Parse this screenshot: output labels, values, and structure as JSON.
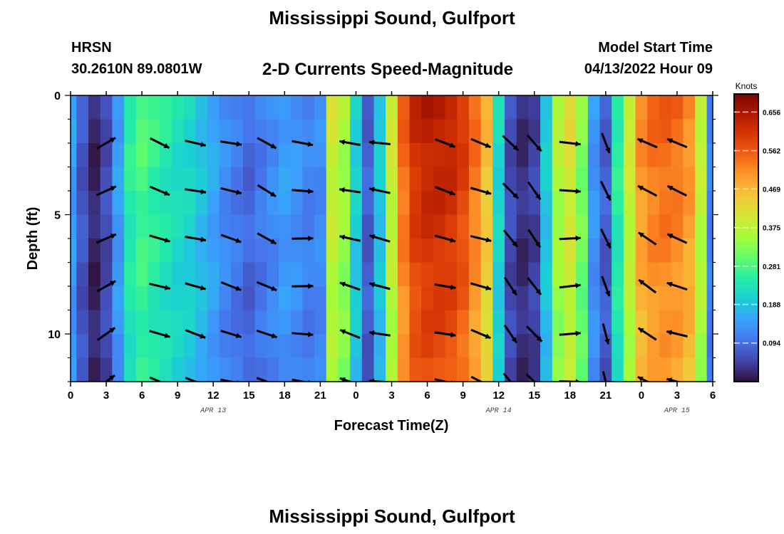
{
  "header": {
    "title": "Mississippi Sound, Gulfport",
    "station": "HRSN",
    "coordinates": "30.2610N  89.0801W",
    "product": "2-D Currents Speed-Magnitude",
    "model_start_label": "Model Start Time",
    "model_start_value": "04/13/2022 Hour 09"
  },
  "footer": {
    "title": "Mississippi Sound, Gulfport"
  },
  "colorbar": {
    "unit": "Knots",
    "ticks": [
      "0.656",
      "0.562",
      "0.469",
      "0.375",
      "0.281",
      "0.188",
      "0.094"
    ],
    "colors": [
      "#30123b",
      "#4145ab",
      "#4675ed",
      "#39a2fc",
      "#1bcfd4",
      "#24eca6",
      "#61fc6c",
      "#a4fc3b",
      "#d1e834",
      "#f3c63a",
      "#fe9b2d",
      "#f36315",
      "#d93806",
      "#b11901",
      "#7a0403"
    ]
  },
  "chart_data": {
    "type": "heatmap",
    "title": "2-D Currents Speed-Magnitude",
    "xlabel": "Forecast Time(Z)",
    "ylabel": "Depth (ft)",
    "units": "Knots",
    "x_range_hours": [
      0,
      54
    ],
    "x_tick_labels": [
      "0",
      "3",
      "6",
      "9",
      "12",
      "15",
      "18",
      "21",
      "0",
      "3",
      "6",
      "9",
      "12",
      "15",
      "18",
      "21",
      "0",
      "3",
      "6"
    ],
    "date_labels": [
      {
        "label": "APR 13",
        "hour": 12
      },
      {
        "label": "APR 14",
        "hour": 36
      },
      {
        "label": "APR 15",
        "hour": 51
      }
    ],
    "y_range_ft": [
      0,
      12
    ],
    "y_tick_labels": [
      "0",
      "5",
      "10"
    ],
    "y_ticks": [
      0,
      5,
      10
    ],
    "color_range": [
      0.0,
      0.7
    ],
    "speed_by_hour": [
      0.15,
      0.07,
      0.02,
      0.06,
      0.15,
      0.26,
      0.29,
      0.27,
      0.25,
      0.23,
      0.22,
      0.19,
      0.16,
      0.13,
      0.11,
      0.09,
      0.11,
      0.13,
      0.15,
      0.14,
      0.12,
      0.13,
      0.4,
      0.36,
      0.21,
      0.08,
      0.2,
      0.4,
      0.56,
      0.63,
      0.65,
      0.65,
      0.64,
      0.61,
      0.55,
      0.47,
      0.22,
      0.06,
      0.03,
      0.05,
      0.2,
      0.37,
      0.42,
      0.33,
      0.14,
      0.08,
      0.26,
      0.4,
      0.52,
      0.55,
      0.56,
      0.55,
      0.52,
      0.39,
      0.12
    ],
    "arrow_hours": [
      3,
      7.5,
      10.5,
      13.5,
      16.5,
      19.5,
      23.5,
      26,
      31.5,
      34.5,
      37,
      39,
      42,
      45,
      48.5,
      51
    ],
    "arrow_depths": [
      2,
      4,
      6,
      8,
      10,
      12
    ],
    "direction_deg_by_column": [
      -30,
      20,
      15,
      15,
      25,
      5,
      195,
      190,
      15,
      20,
      50,
      50,
      0,
      70,
      210,
      200
    ],
    "direction_notes": "Arrow directions in degrees clockwise from east (screen convention)"
  }
}
